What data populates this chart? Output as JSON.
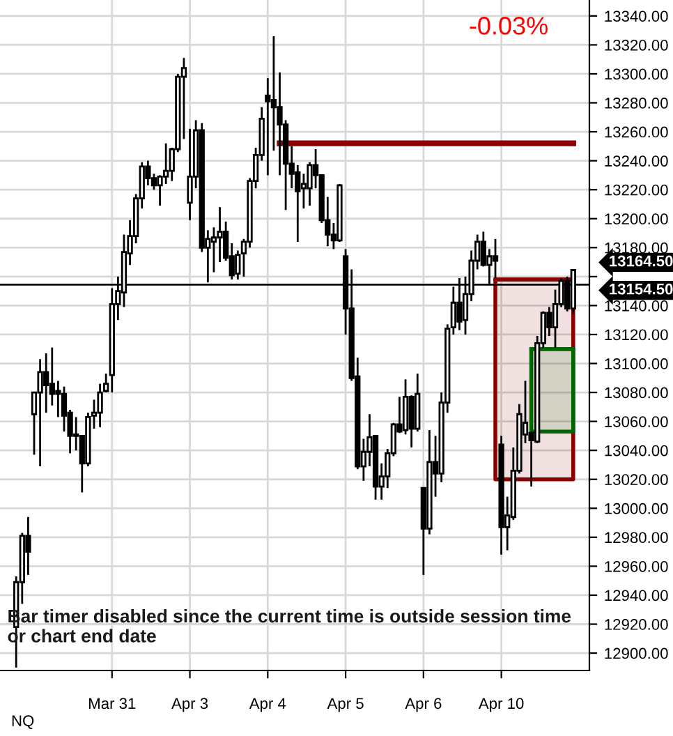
{
  "chart_data": {
    "type": "candlestick",
    "categories": [
      null,
      null,
      null,
      null,
      null,
      null,
      null,
      null,
      null,
      null,
      null,
      null,
      null,
      null,
      null,
      null,
      "Mar 31",
      null,
      null,
      null,
      null,
      null,
      null,
      null,
      null,
      null,
      null,
      null,
      null,
      "Apr 3",
      null,
      null,
      null,
      null,
      null,
      null,
      null,
      null,
      null,
      null,
      null,
      null,
      "Apr 4",
      null,
      null,
      null,
      null,
      null,
      null,
      null,
      null,
      null,
      null,
      null,
      null,
      "Apr 5",
      null,
      null,
      null,
      null,
      null,
      null,
      null,
      null,
      null,
      null,
      null,
      null,
      "Apr 6",
      null,
      null,
      null,
      null,
      null,
      null,
      null,
      null,
      null,
      null,
      null,
      null,
      "Apr 10",
      null,
      null,
      null,
      null,
      null,
      null,
      null,
      null,
      null,
      null,
      null,
      null
    ],
    "color": "#000000",
    "ohlc": [
      [
        12918,
        12953,
        12890,
        12949
      ],
      [
        12949,
        12983,
        12934,
        12981
      ],
      [
        12981,
        12994,
        12954,
        12970
      ],
      [
        13065,
        13080,
        13037,
        13080
      ],
      [
        13080,
        13103,
        13029,
        13094
      ],
      [
        13094,
        13107,
        13066,
        13085
      ],
      [
        13086,
        13111,
        13071,
        13079
      ],
      [
        13081,
        13088,
        13063,
        13079
      ],
      [
        13079,
        13084,
        13053,
        13064
      ],
      [
        13066,
        13068,
        13038,
        13050
      ],
      [
        13051,
        13063,
        13040,
        13050
      ],
      [
        13050,
        13050,
        13011,
        13031
      ],
      [
        13031,
        13066,
        13029,
        13063
      ],
      [
        13064,
        13075,
        13055,
        13066
      ],
      [
        13066,
        13086,
        13056,
        13080
      ],
      [
        13081,
        13093,
        13080,
        13086
      ],
      [
        13092,
        13152,
        13080,
        13141
      ],
      [
        13141,
        13160,
        13130,
        13150
      ],
      [
        13149,
        13189,
        13139,
        13177
      ],
      [
        13176,
        13199,
        13168,
        13188
      ],
      [
        13188,
        13217,
        13183,
        13214
      ],
      [
        13214,
        13239,
        13207,
        13236
      ],
      [
        13236,
        13240,
        13223,
        13228
      ],
      [
        13228,
        13231,
        13220,
        13223
      ],
      [
        13223,
        13230,
        13209,
        13229
      ],
      [
        13229,
        13252,
        13224,
        13233
      ],
      [
        13233,
        13249,
        13226,
        13248
      ],
      [
        13248,
        13300,
        13246,
        13298
      ],
      [
        13298,
        13311,
        13255,
        13304
      ],
      [
        13211,
        13262,
        13199,
        13229
      ],
      [
        13229,
        13268,
        13221,
        13261
      ],
      [
        13261,
        13266,
        13177,
        13180
      ],
      [
        13180,
        13192,
        13156,
        13186
      ],
      [
        13184,
        13194,
        13163,
        13187
      ],
      [
        13187,
        13208,
        13170,
        13191
      ],
      [
        13191,
        13198,
        13171,
        13173
      ],
      [
        13174,
        13183,
        13158,
        13161
      ],
      [
        13162,
        13178,
        13158,
        13175
      ],
      [
        13176,
        13186,
        13160,
        13184
      ],
      [
        13184,
        13228,
        13180,
        13226
      ],
      [
        13226,
        13249,
        13221,
        13244
      ],
      [
        13244,
        13277,
        13240,
        13269
      ],
      [
        13285,
        13297,
        13230,
        13281
      ],
      [
        13282,
        13326,
        13247,
        13277
      ],
      [
        13277,
        13301,
        13230,
        13265
      ],
      [
        13265,
        13268,
        13206,
        13238
      ],
      [
        13238,
        13250,
        13221,
        13231
      ],
      [
        13232,
        13237,
        13184,
        13219
      ],
      [
        13221,
        13231,
        13207,
        13224
      ],
      [
        13221,
        13239,
        13209,
        13237
      ],
      [
        13237,
        13248,
        13221,
        13230
      ],
      [
        13230,
        13230,
        13197,
        13199
      ],
      [
        13199,
        13215,
        13181,
        13189
      ],
      [
        13189,
        13197,
        13179,
        13185
      ],
      [
        13185,
        13224,
        13184,
        13223
      ],
      [
        13174,
        13179,
        13120,
        13138
      ],
      [
        13138,
        13165,
        13088,
        13090
      ],
      [
        13091,
        13104,
        13027,
        13029
      ],
      [
        13029,
        13048,
        13019,
        13039
      ],
      [
        13039,
        13065,
        13029,
        13049
      ],
      [
        13050,
        13050,
        13006,
        13015
      ],
      [
        13015,
        13031,
        13006,
        13022
      ],
      [
        13022,
        13041,
        13014,
        13038
      ],
      [
        13038,
        13059,
        13036,
        13058
      ],
      [
        13058,
        13077,
        13052,
        13053
      ],
      [
        13054,
        13089,
        13051,
        13077
      ],
      [
        13077,
        13078,
        13042,
        13055
      ],
      [
        13055,
        13093,
        13053,
        13079
      ],
      [
        13014,
        13014,
        12954,
        12986
      ],
      [
        12986,
        13054,
        12982,
        13032
      ],
      [
        13032,
        13050,
        13008,
        13024
      ],
      [
        13024,
        13080,
        13018,
        13073
      ],
      [
        13073,
        13127,
        13066,
        13124
      ],
      [
        13125,
        13153,
        13120,
        13142
      ],
      [
        13142,
        13159,
        13123,
        13129
      ],
      [
        13130,
        13160,
        13120,
        13148
      ],
      [
        13148,
        13178,
        13143,
        13171
      ],
      [
        13171,
        13189,
        13165,
        13184
      ],
      [
        13184,
        13191,
        13167,
        13168
      ],
      [
        13168,
        13179,
        13154,
        13174
      ],
      [
        13174,
        13186,
        13159,
        13171
      ],
      [
        13044,
        13050,
        12968,
        12987
      ],
      [
        12987,
        13008,
        12971,
        12995
      ],
      [
        12994,
        13042,
        12992,
        13026
      ],
      [
        13026,
        13072,
        13024,
        13065
      ],
      [
        13051,
        13088,
        13045,
        13059
      ],
      [
        13052,
        13053,
        13015,
        13047
      ],
      [
        13046,
        13119,
        13045,
        13114
      ],
      [
        13114,
        13136,
        13111,
        13135
      ],
      [
        13135,
        13139,
        13119,
        13125
      ],
      [
        13125,
        13151,
        13111,
        13141
      ],
      [
        13141,
        13159,
        13139,
        13157
      ],
      [
        13157,
        13160,
        13136,
        13138
      ],
      [
        13138,
        13165,
        13134,
        13164.5
      ]
    ],
    "series": [
      {
        "type": "line",
        "color": "#8b0000",
        "values": [
          null,
          null,
          null,
          null,
          null,
          null,
          null,
          null,
          null,
          null,
          null,
          null,
          null,
          null,
          null,
          null,
          null,
          null,
          null,
          null,
          null,
          null,
          null,
          null,
          null,
          null,
          null,
          null,
          null,
          null,
          null,
          null,
          null,
          null,
          null,
          null,
          null,
          null,
          null,
          null,
          null,
          null,
          null,
          null,
          13252,
          13252,
          13252,
          13252,
          13252,
          13252,
          13252,
          13252,
          13252,
          13252,
          13252,
          13252,
          13252,
          13252,
          13252,
          13252,
          13252,
          13252,
          13252,
          13252,
          13252,
          13252,
          13252,
          13252,
          13252,
          13252,
          13252,
          13252,
          13252,
          13252,
          13252,
          13252,
          13252,
          13252,
          13252,
          13252,
          13252,
          13252,
          13252,
          13252,
          13252,
          13252,
          13252,
          13252,
          13252,
          13252,
          13252,
          13252,
          13252,
          13252
        ]
      },
      {
        "type": "line",
        "color": "#8b0000",
        "values": [
          null,
          null,
          null,
          null,
          null,
          null,
          null,
          null,
          null,
          null,
          null,
          null,
          null,
          null,
          null,
          null,
          null,
          null,
          null,
          null,
          null,
          null,
          null,
          null,
          null,
          null,
          null,
          null,
          null,
          null,
          null,
          null,
          null,
          null,
          null,
          null,
          null,
          null,
          null,
          null,
          null,
          null,
          null,
          null,
          null,
          null,
          null,
          null,
          null,
          null,
          null,
          null,
          null,
          null,
          null,
          null,
          null,
          null,
          null,
          null,
          null,
          null,
          null,
          null,
          null,
          null,
          null,
          null,
          null,
          null,
          null,
          null,
          null,
          null,
          null,
          null,
          null,
          null,
          null,
          null,
          13158,
          13158,
          13158,
          13158,
          13158,
          13158,
          13158,
          13158,
          13158,
          13158,
          13158,
          13158,
          13158,
          13158
        ],
        "upper": [
          null,
          null,
          null,
          null,
          null,
          null,
          null,
          null,
          null,
          null,
          null,
          null,
          null,
          null,
          null,
          null,
          null,
          null,
          null,
          null,
          null,
          null,
          null,
          null,
          null,
          null,
          null,
          null,
          null,
          null,
          null,
          null,
          null,
          null,
          null,
          null,
          null,
          null,
          null,
          null,
          null,
          null,
          null,
          null,
          null,
          null,
          null,
          null,
          null,
          null,
          null,
          null,
          null,
          null,
          null,
          null,
          null,
          null,
          null,
          null,
          null,
          null,
          null,
          null,
          null,
          null,
          null,
          null,
          null,
          null,
          null,
          null,
          null,
          null,
          null,
          null,
          null,
          null,
          null,
          null,
          13158,
          13158,
          13158,
          13158,
          13158,
          13158,
          13158,
          13158,
          13158,
          13158,
          13158,
          13158,
          13158,
          13158
        ],
        "lower": [
          null,
          null,
          null,
          null,
          null,
          null,
          null,
          null,
          null,
          null,
          null,
          null,
          null,
          null,
          null,
          null,
          null,
          null,
          null,
          null,
          null,
          null,
          null,
          null,
          null,
          null,
          null,
          null,
          null,
          null,
          null,
          null,
          null,
          null,
          null,
          null,
          null,
          null,
          null,
          null,
          null,
          null,
          null,
          null,
          null,
          null,
          null,
          null,
          null,
          null,
          null,
          null,
          null,
          null,
          null,
          null,
          null,
          null,
          null,
          null,
          null,
          null,
          null,
          null,
          null,
          null,
          null,
          null,
          null,
          null,
          null,
          null,
          null,
          null,
          null,
          null,
          null,
          null,
          null,
          null,
          13020,
          13020,
          13020,
          13020,
          13020,
          13020,
          13020,
          13020,
          13020,
          13020,
          13020,
          13020,
          13020,
          13020
        ]
      },
      {
        "type": "line",
        "color": "#006400",
        "values": [
          null,
          null,
          null,
          null,
          null,
          null,
          null,
          null,
          null,
          null,
          null,
          null,
          null,
          null,
          null,
          null,
          null,
          null,
          null,
          null,
          null,
          null,
          null,
          null,
          null,
          null,
          null,
          null,
          null,
          null,
          null,
          null,
          null,
          null,
          null,
          null,
          null,
          null,
          null,
          null,
          null,
          null,
          null,
          null,
          null,
          null,
          null,
          null,
          null,
          null,
          null,
          null,
          null,
          null,
          null,
          null,
          null,
          null,
          null,
          null,
          null,
          null,
          null,
          null,
          null,
          null,
          null,
          null,
          null,
          null,
          null,
          null,
          null,
          null,
          null,
          null,
          null,
          null,
          null,
          null,
          null,
          null,
          null,
          null,
          null,
          null,
          13110,
          13110,
          13110,
          13110,
          13110,
          13110,
          13110,
          13110
        ],
        "upper": [
          null,
          null,
          null,
          null,
          null,
          null,
          null,
          null,
          null,
          null,
          null,
          null,
          null,
          null,
          null,
          null,
          null,
          null,
          null,
          null,
          null,
          null,
          null,
          null,
          null,
          null,
          null,
          null,
          null,
          null,
          null,
          null,
          null,
          null,
          null,
          null,
          null,
          null,
          null,
          null,
          null,
          null,
          null,
          null,
          null,
          null,
          null,
          null,
          null,
          null,
          null,
          null,
          null,
          null,
          null,
          null,
          null,
          null,
          null,
          null,
          null,
          null,
          null,
          null,
          null,
          null,
          null,
          null,
          null,
          null,
          null,
          null,
          null,
          null,
          null,
          null,
          null,
          null,
          null,
          null,
          null,
          null,
          null,
          null,
          null,
          null,
          13110,
          13110,
          13110,
          13110,
          13110,
          13110,
          13110,
          13110
        ],
        "lower": [
          null,
          null,
          null,
          null,
          null,
          null,
          null,
          null,
          null,
          null,
          null,
          null,
          null,
          null,
          null,
          null,
          null,
          null,
          null,
          null,
          null,
          null,
          null,
          null,
          null,
          null,
          null,
          null,
          null,
          null,
          null,
          null,
          null,
          null,
          null,
          null,
          null,
          null,
          null,
          null,
          null,
          null,
          null,
          null,
          null,
          null,
          null,
          null,
          null,
          null,
          null,
          null,
          null,
          null,
          null,
          null,
          null,
          null,
          null,
          null,
          null,
          null,
          null,
          null,
          null,
          null,
          null,
          null,
          null,
          null,
          null,
          null,
          null,
          null,
          null,
          null,
          null,
          null,
          null,
          null,
          null,
          null,
          null,
          null,
          null,
          null,
          13053,
          13053,
          13053,
          13053,
          13053,
          13053,
          13053,
          13053
        ]
      }
    ],
    "ylim": [
      12888,
      13351
    ],
    "yticks": [
      {
        "value": 12900,
        "label": "12900.00"
      },
      {
        "value": 12920,
        "label": "12920.00"
      },
      {
        "value": 12940,
        "label": "12940.00"
      },
      {
        "value": 12960,
        "label": "12960.00"
      },
      {
        "value": 12980,
        "label": "12980.00"
      },
      {
        "value": 13000,
        "label": "13000.00"
      },
      {
        "value": 13020,
        "label": "13020.00"
      },
      {
        "value": 13040,
        "label": "13040.00"
      },
      {
        "value": 13060,
        "label": "13060.00"
      },
      {
        "value": 13080,
        "label": "13080.00"
      },
      {
        "value": 13100,
        "label": "13100.00"
      },
      {
        "value": 13120,
        "label": "13120.00"
      },
      {
        "value": 13140,
        "label": "13140.00"
      },
      {
        "value": 13160,
        "label": null
      },
      {
        "value": 13180,
        "label": "13180.00"
      },
      {
        "value": 13200,
        "label": "13200.00"
      },
      {
        "value": 13220,
        "label": "13220.00"
      },
      {
        "value": 13240,
        "label": "13240.00"
      },
      {
        "value": 13260,
        "label": "13260.00"
      },
      {
        "value": 13280,
        "label": "13280.00"
      },
      {
        "value": 13300,
        "label": "13300.00"
      },
      {
        "value": 13320,
        "label": "13320.00"
      },
      {
        "value": 13340,
        "label": "13340.00"
      }
    ],
    "ref_lines": [
      {
        "axis": "y",
        "value": 13154.5,
        "label": "13154.50",
        "color": "#000000"
      }
    ],
    "annotations": [
      "-0.03%",
      "Bar timer disabled since the current time is outside session time or chart end date",
      "NQ",
      "13164.50"
    ],
    "grid": true
  }
}
